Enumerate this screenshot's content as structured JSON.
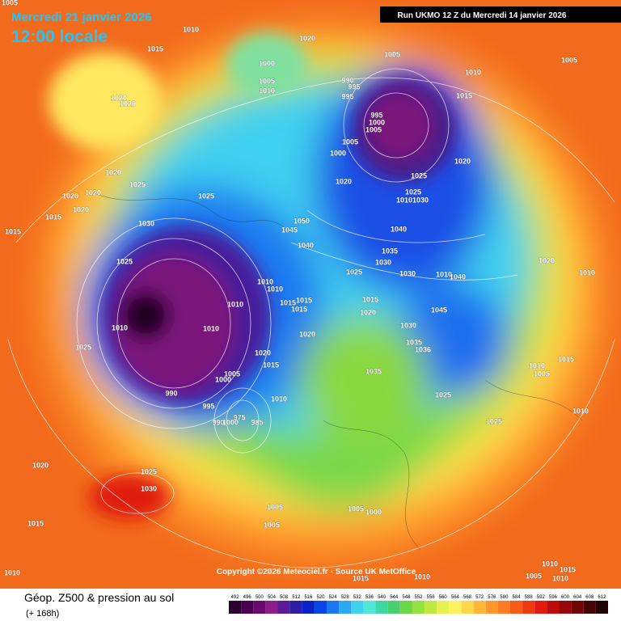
{
  "header": {
    "date": "Mercredi 21 janvier 2026",
    "time": "12:00 locale",
    "run": "Run UKMO 12 Z du Mercredi 14 janvier 2026"
  },
  "footer": {
    "title": "Géop. Z500 & pression au sol",
    "lead": "(+ 168h)",
    "copyright": "Copyright ©2026 Meteociel.fr - Source UK MetOffice"
  },
  "colorbar": {
    "ticks": [
      492,
      496,
      500,
      504,
      508,
      512,
      516,
      520,
      524,
      528,
      532,
      536,
      540,
      544,
      548,
      552,
      556,
      560,
      564,
      568,
      572,
      576,
      580,
      584,
      588,
      592,
      596,
      600,
      604,
      608,
      612
    ],
    "colors": [
      "#2a0030",
      "#4a0052",
      "#6a0a6e",
      "#8a1e8a",
      "#5a1a9a",
      "#2a1ea8",
      "#0a22c8",
      "#0a46e6",
      "#1a78f0",
      "#2aa8f0",
      "#40d0f0",
      "#50e6d8",
      "#3ed8a0",
      "#48d070",
      "#6ad848",
      "#96e040",
      "#c0e840",
      "#e6f050",
      "#fff060",
      "#ffd84a",
      "#ffb83a",
      "#ff982c",
      "#ff7a20",
      "#f85a18",
      "#ee3a12",
      "#e01a10",
      "#c00a0a",
      "#980808",
      "#700606",
      "#480404",
      "#200202"
    ]
  },
  "isobar_labels": [
    "1005",
    "1010",
    "1015",
    "1020",
    "1005",
    "1005",
    "1010",
    "1000",
    "1005",
    "1010",
    "990",
    "995",
    "995",
    "1020",
    "1020",
    "995",
    "1000",
    "1005",
    "1015",
    "1000",
    "1005",
    "1020",
    "1020",
    "1025",
    "1020",
    "1025",
    "1025",
    "1020",
    "1020",
    "1025",
    "1010",
    "1030",
    "1020",
    "1015",
    "1030",
    "1050",
    "1045",
    "1040",
    "1015",
    "1040",
    "1035",
    "1025",
    "1030",
    "1020",
    "1010",
    "1025",
    "1030",
    "1010",
    "1010",
    "1010",
    "1040",
    "1015",
    "1010",
    "1015",
    "1015",
    "1015",
    "1020",
    "1045",
    "1010",
    "1010",
    "1030",
    "1020",
    "1035",
    "1036",
    "1025",
    "1020",
    "1015",
    "1015",
    "1010",
    "1005",
    "1035",
    "1005",
    "1000",
    "1010",
    "990",
    "1025",
    "995",
    "975",
    "985",
    "990",
    "1000",
    "1010",
    "1025",
    "1020",
    "1025",
    "1030",
    "1005",
    "1005",
    "1000",
    "1015",
    "1005",
    "1010",
    "1015",
    "1005",
    "1010",
    "1010",
    "1010",
    "1015"
  ]
}
